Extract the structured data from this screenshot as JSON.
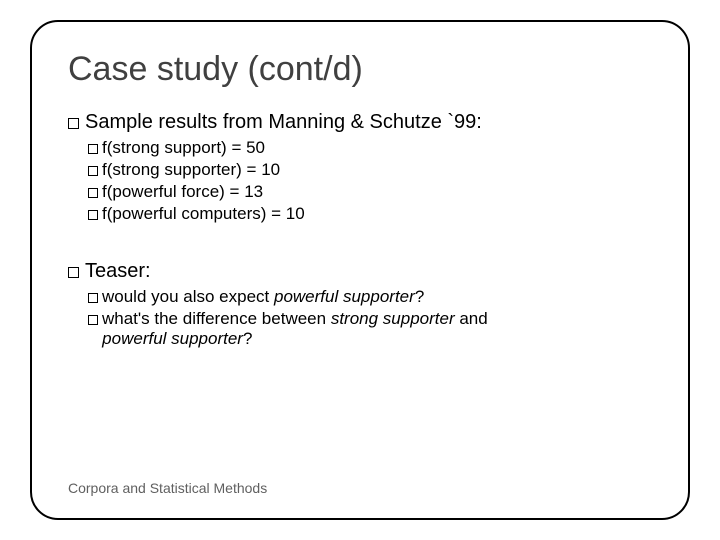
{
  "title": "Case study (cont/d)",
  "section1": {
    "heading": "Sample results from Manning & Schutze `99:",
    "items": [
      "f(strong support) = 50",
      "f(strong supporter) = 10",
      "f(powerful force) = 13",
      "f(powerful computers) = 10"
    ]
  },
  "section2": {
    "heading": "Teaser:",
    "q1_pre": "would you also expect ",
    "q1_em": "powerful supporter",
    "q1_post": "?",
    "q2_pre": "what's the difference between ",
    "q2_em1": "strong supporter",
    "q2_mid": " and ",
    "q2_em2": "powerful supporter",
    "q2_post": "?"
  },
  "footer": "Corpora and Statistical Methods",
  "colors": {
    "title_color": "#404040",
    "text_color": "#000000",
    "footer_color": "#606060",
    "border_color": "#000000",
    "background": "#ffffff"
  },
  "typography": {
    "title_fontsize": 34,
    "body_fontsize": 20,
    "sub_fontsize": 17,
    "footer_fontsize": 14,
    "font_family": "Arial"
  },
  "layout": {
    "slide_width": 720,
    "slide_height": 540,
    "frame_border_radius": 28,
    "frame_border_width": 2
  }
}
